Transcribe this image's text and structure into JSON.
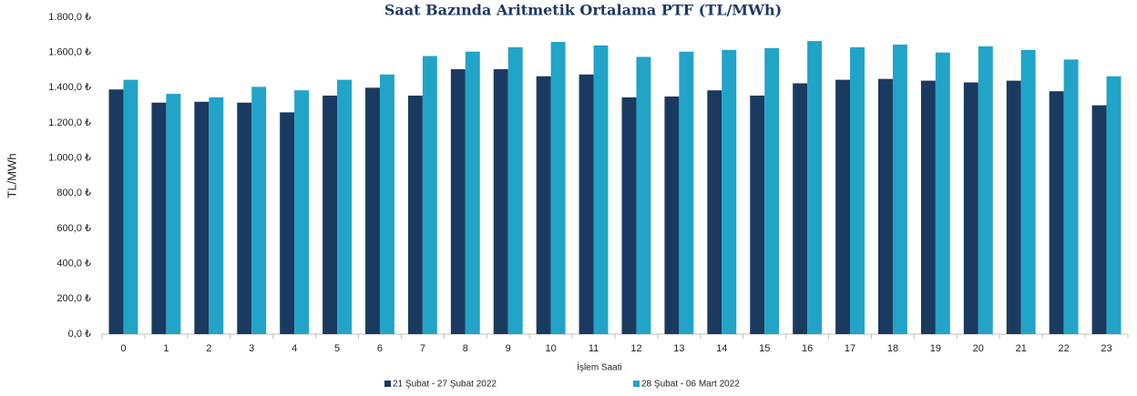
{
  "chart_data": {
    "type": "bar",
    "title": "Saat Bazında Aritmetik Ortalama PTF (TL/MWh)",
    "y_label": "TL/MWh",
    "x_label": "İşlem Saati",
    "categories": [
      "0",
      "1",
      "2",
      "3",
      "4",
      "5",
      "6",
      "7",
      "8",
      "9",
      "10",
      "11",
      "12",
      "13",
      "14",
      "15",
      "16",
      "17",
      "18",
      "19",
      "20",
      "21",
      "22",
      "23"
    ],
    "series": [
      {
        "name": "21 Şubat - 27 Şubat 2022",
        "color": "#1b3a5f",
        "values": [
          1390,
          1315,
          1320,
          1315,
          1260,
          1355,
          1400,
          1355,
          1505,
          1505,
          1465,
          1475,
          1345,
          1350,
          1385,
          1355,
          1425,
          1445,
          1450,
          1440,
          1430,
          1440,
          1380,
          1300
        ]
      },
      {
        "name": "28 Şubat - 06 Mart 2022",
        "color": "#21a4c8",
        "values": [
          1445,
          1365,
          1345,
          1405,
          1385,
          1445,
          1475,
          1580,
          1605,
          1630,
          1660,
          1640,
          1575,
          1605,
          1615,
          1625,
          1665,
          1630,
          1645,
          1600,
          1635,
          1615,
          1560,
          1465
        ]
      }
    ],
    "ylim": [
      0,
      1800
    ],
    "yticks": [
      {
        "value": 0,
        "label": "0,0 ₺"
      },
      {
        "value": 200,
        "label": "200,0 ₺"
      },
      {
        "value": 400,
        "label": "400,0 ₺"
      },
      {
        "value": 600,
        "label": "600,0 ₺"
      },
      {
        "value": 800,
        "label": "800,0 ₺"
      },
      {
        "value": 1000,
        "label": "1.000,0 ₺"
      },
      {
        "value": 1200,
        "label": "1.200,0 ₺"
      },
      {
        "value": 1400,
        "label": "1.400,0 ₺"
      },
      {
        "value": 1600,
        "label": "1.600,0 ₺"
      },
      {
        "value": 1800,
        "label": "1.800,0 ₺"
      }
    ],
    "grid": false,
    "legend": "bottom"
  }
}
